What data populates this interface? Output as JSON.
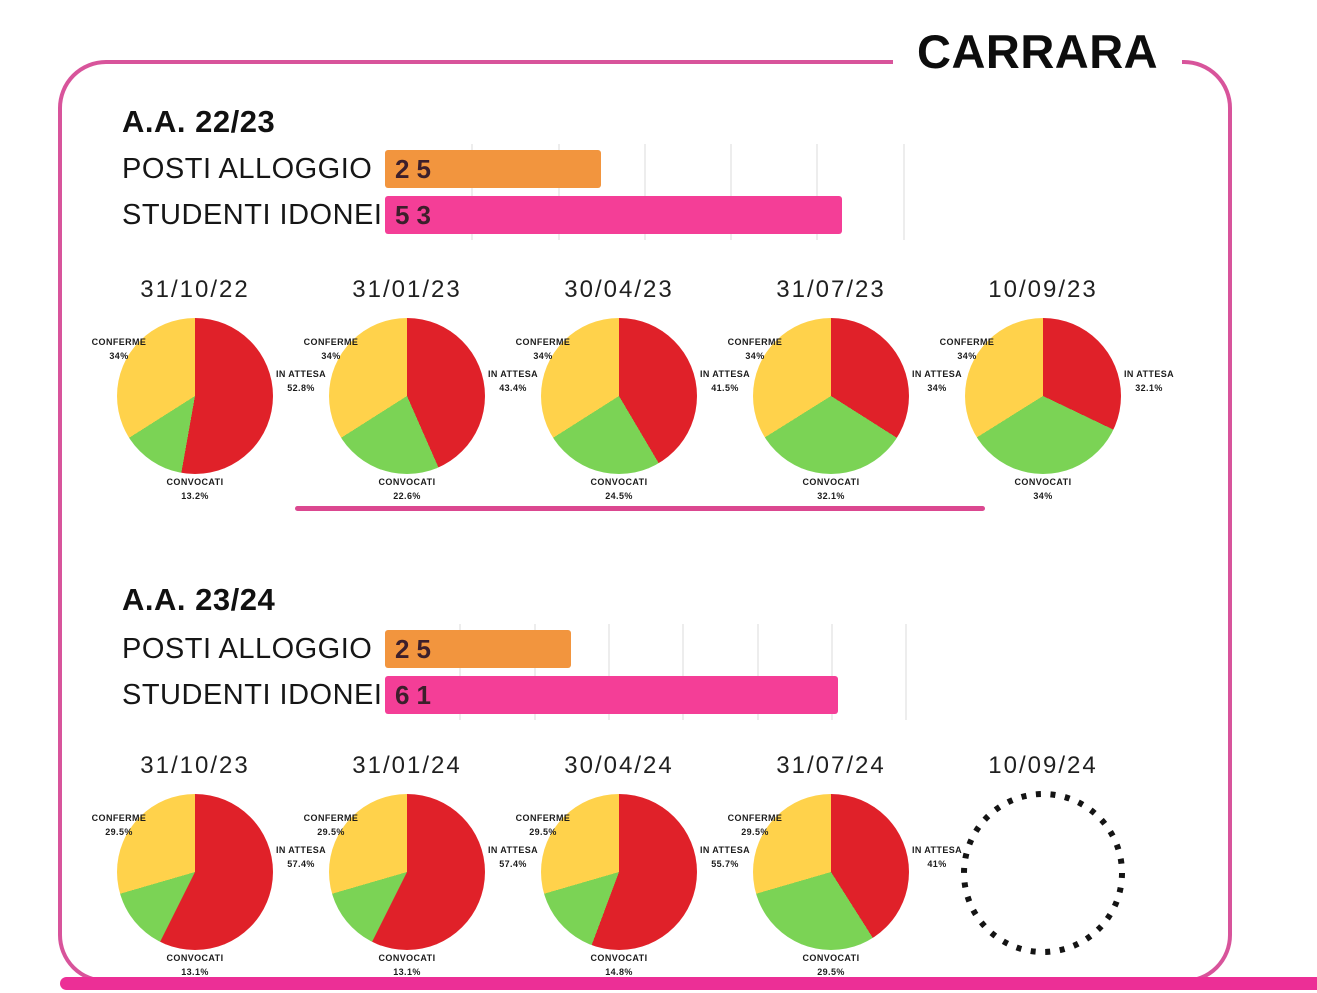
{
  "page_title": "CARRARA",
  "colors": {
    "in_attesa": "#E02129",
    "convocati": "#7BD355",
    "conferme": "#FFD24B",
    "posti_alloggio_bar": "#F2953E",
    "studenti_idonei_bar": "#F43E97",
    "frame": "#D8549B",
    "divider": "#DB4890",
    "bottom_strip": "#EC2F96"
  },
  "chart_data": [
    {
      "type": "bar",
      "title": "A.A. 22/23",
      "orientation": "horizontal",
      "categories": [
        "POSTI ALLOGGIO",
        "STUDENTI IDONEI"
      ],
      "values": [
        25,
        53
      ],
      "value_labels": [
        "25",
        "53"
      ],
      "colors": [
        "#F2953E",
        "#F43E97"
      ],
      "xlim": [
        0,
        62
      ],
      "grid_step": 10
    },
    {
      "type": "pie",
      "charts": [
        {
          "date": "31/10/22",
          "empty": false,
          "slices": [
            {
              "name": "IN ATTESA",
              "pct": 52.8,
              "pct_label": "52.8%",
              "color": "#E02129"
            },
            {
              "name": "CONVOCATI",
              "pct": 13.2,
              "pct_label": "13.2%",
              "color": "#7BD355"
            },
            {
              "name": "CONFERME",
              "pct": 34,
              "pct_label": "34%",
              "color": "#FFD24B"
            }
          ]
        },
        {
          "date": "31/01/23",
          "empty": false,
          "slices": [
            {
              "name": "IN ATTESA",
              "pct": 43.4,
              "pct_label": "43.4%",
              "color": "#E02129"
            },
            {
              "name": "CONVOCATI",
              "pct": 22.6,
              "pct_label": "22.6%",
              "color": "#7BD355"
            },
            {
              "name": "CONFERME",
              "pct": 34,
              "pct_label": "34%",
              "color": "#FFD24B"
            }
          ]
        },
        {
          "date": "30/04/23",
          "empty": false,
          "slices": [
            {
              "name": "IN ATTESA",
              "pct": 41.5,
              "pct_label": "41.5%",
              "color": "#E02129"
            },
            {
              "name": "CONVOCATI",
              "pct": 24.5,
              "pct_label": "24.5%",
              "color": "#7BD355"
            },
            {
              "name": "CONFERME",
              "pct": 34,
              "pct_label": "34%",
              "color": "#FFD24B"
            }
          ]
        },
        {
          "date": "31/07/23",
          "empty": false,
          "slices": [
            {
              "name": "IN ATTESA",
              "pct": 34,
              "pct_label": "34%",
              "color": "#E02129"
            },
            {
              "name": "CONVOCATI",
              "pct": 32.1,
              "pct_label": "32.1%",
              "color": "#7BD355"
            },
            {
              "name": "CONFERME",
              "pct": 34,
              "pct_label": "34%",
              "color": "#FFD24B"
            }
          ]
        },
        {
          "date": "10/09/23",
          "empty": false,
          "slices": [
            {
              "name": "IN ATTESA",
              "pct": 32.1,
              "pct_label": "32.1%",
              "color": "#E02129"
            },
            {
              "name": "CONVOCATI",
              "pct": 34,
              "pct_label": "34%",
              "color": "#7BD355"
            },
            {
              "name": "CONFERME",
              "pct": 34,
              "pct_label": "34%",
              "color": "#FFD24B"
            }
          ]
        }
      ]
    },
    {
      "type": "bar",
      "title": "A.A. 23/24",
      "orientation": "horizontal",
      "categories": [
        "POSTI ALLOGGIO",
        "STUDENTI IDONEI"
      ],
      "values": [
        25,
        61
      ],
      "value_labels": [
        "25",
        "61"
      ],
      "colors": [
        "#F2953E",
        "#F43E97"
      ],
      "xlim": [
        0,
        72
      ],
      "grid_step": 10
    },
    {
      "type": "pie",
      "charts": [
        {
          "date": "31/10/23",
          "empty": false,
          "slices": [
            {
              "name": "IN ATTESA",
              "pct": 57.4,
              "pct_label": "57.4%",
              "color": "#E02129"
            },
            {
              "name": "CONVOCATI",
              "pct": 13.1,
              "pct_label": "13.1%",
              "color": "#7BD355"
            },
            {
              "name": "CONFERME",
              "pct": 29.5,
              "pct_label": "29.5%",
              "color": "#FFD24B"
            }
          ]
        },
        {
          "date": "31/01/24",
          "empty": false,
          "slices": [
            {
              "name": "IN ATTESA",
              "pct": 57.4,
              "pct_label": "57.4%",
              "color": "#E02129"
            },
            {
              "name": "CONVOCATI",
              "pct": 13.1,
              "pct_label": "13.1%",
              "color": "#7BD355"
            },
            {
              "name": "CONFERME",
              "pct": 29.5,
              "pct_label": "29.5%",
              "color": "#FFD24B"
            }
          ]
        },
        {
          "date": "30/04/24",
          "empty": false,
          "slices": [
            {
              "name": "IN ATTESA",
              "pct": 55.7,
              "pct_label": "55.7%",
              "color": "#E02129"
            },
            {
              "name": "CONVOCATI",
              "pct": 14.8,
              "pct_label": "14.8%",
              "color": "#7BD355"
            },
            {
              "name": "CONFERME",
              "pct": 29.5,
              "pct_label": "29.5%",
              "color": "#FFD24B"
            }
          ]
        },
        {
          "date": "31/07/24",
          "empty": false,
          "slices": [
            {
              "name": "IN ATTESA",
              "pct": 41,
              "pct_label": "41%",
              "color": "#E02129"
            },
            {
              "name": "CONVOCATI",
              "pct": 29.5,
              "pct_label": "29.5%",
              "color": "#7BD355"
            },
            {
              "name": "CONFERME",
              "pct": 29.5,
              "pct_label": "29.5%",
              "color": "#FFD24B"
            }
          ]
        },
        {
          "date": "10/09/24",
          "empty": true,
          "slices": []
        }
      ]
    }
  ]
}
